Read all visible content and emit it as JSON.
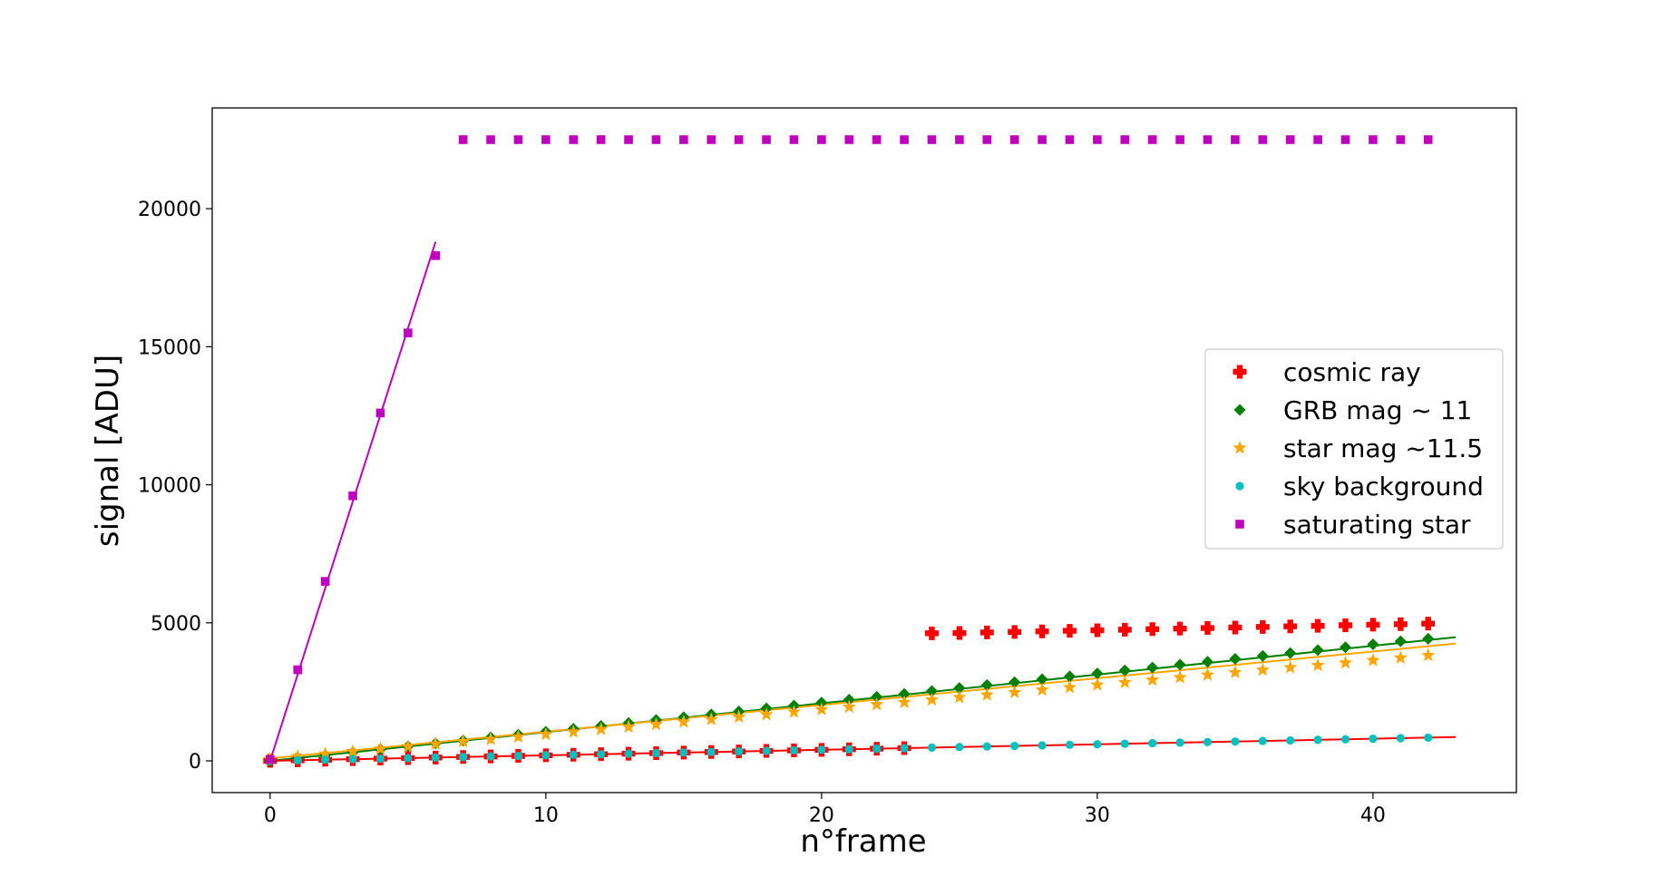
{
  "chart_data": {
    "type": "scatter",
    "xlabel": "n°frame",
    "ylabel": "signal [ADU]",
    "xlim": [
      -2.1,
      45.2
    ],
    "ylim": [
      -1150,
      23650
    ],
    "xticks": [
      0,
      10,
      20,
      30,
      40
    ],
    "yticks": [
      0,
      5000,
      10000,
      15000,
      20000
    ],
    "grid": false,
    "legend_position": "center-right",
    "series": [
      {
        "name": "cosmic ray",
        "marker": "plus",
        "color": "#ff0000",
        "x": [
          0,
          1,
          2,
          3,
          4,
          5,
          6,
          7,
          8,
          9,
          10,
          11,
          12,
          13,
          14,
          15,
          16,
          17,
          18,
          19,
          20,
          21,
          22,
          23,
          24,
          25,
          26,
          27,
          28,
          29,
          30,
          31,
          32,
          33,
          34,
          35,
          36,
          37,
          38,
          39,
          40,
          41,
          42
        ],
        "y": [
          0,
          20,
          40,
          60,
          80,
          100,
          120,
          140,
          160,
          180,
          200,
          220,
          240,
          260,
          280,
          300,
          320,
          340,
          360,
          380,
          400,
          420,
          440,
          460,
          4620,
          4630,
          4650,
          4670,
          4690,
          4710,
          4730,
          4750,
          4770,
          4790,
          4810,
          4830,
          4850,
          4870,
          4890,
          4910,
          4930,
          4950,
          4970
        ]
      },
      {
        "name": "GRB mag ~ 11",
        "marker": "diamond",
        "color": "#008000",
        "x": [
          0,
          1,
          2,
          3,
          4,
          5,
          6,
          7,
          8,
          9,
          10,
          11,
          12,
          13,
          14,
          15,
          16,
          17,
          18,
          19,
          20,
          21,
          22,
          23,
          24,
          25,
          26,
          27,
          28,
          29,
          30,
          31,
          32,
          33,
          34,
          35,
          36,
          37,
          38,
          39,
          40,
          41,
          42
        ],
        "y": [
          0,
          100,
          205,
          310,
          420,
          525,
          630,
          735,
          845,
          950,
          1055,
          1160,
          1265,
          1370,
          1480,
          1580,
          1685,
          1790,
          1900,
          2005,
          2110,
          2215,
          2320,
          2425,
          2530,
          2640,
          2745,
          2850,
          2955,
          3060,
          3165,
          3275,
          3380,
          3485,
          3590,
          3695,
          3800,
          3905,
          4010,
          4115,
          4220,
          4330,
          4420
        ]
      },
      {
        "name": "star mag ~11.5",
        "marker": "star",
        "color": "#ffa500",
        "x": [
          0,
          1,
          2,
          3,
          4,
          5,
          6,
          7,
          8,
          9,
          10,
          11,
          12,
          13,
          14,
          15,
          16,
          17,
          18,
          19,
          20,
          21,
          22,
          23,
          24,
          25,
          26,
          27,
          28,
          29,
          30,
          31,
          32,
          33,
          34,
          35,
          36,
          37,
          38,
          39,
          40,
          41,
          42
        ],
        "y": [
          60,
          160,
          250,
          340,
          430,
          520,
          610,
          700,
          780,
          870,
          960,
          1050,
          1140,
          1230,
          1320,
          1410,
          1500,
          1590,
          1680,
          1770,
          1860,
          1950,
          2040,
          2120,
          2210,
          2300,
          2390,
          2480,
          2570,
          2660,
          2750,
          2840,
          2930,
          3020,
          3110,
          3200,
          3290,
          3380,
          3460,
          3550,
          3640,
          3730,
          3820
        ]
      },
      {
        "name": "sky background",
        "marker": "circle",
        "color": "#00bfbf",
        "x": [
          0,
          1,
          2,
          3,
          4,
          5,
          6,
          7,
          8,
          9,
          10,
          11,
          12,
          13,
          14,
          15,
          16,
          17,
          18,
          19,
          20,
          21,
          22,
          23,
          24,
          25,
          26,
          27,
          28,
          29,
          30,
          31,
          32,
          33,
          34,
          35,
          36,
          37,
          38,
          39,
          40,
          41,
          42
        ],
        "y": [
          0,
          20,
          40,
          60,
          80,
          100,
          120,
          140,
          160,
          180,
          200,
          220,
          240,
          260,
          280,
          300,
          320,
          340,
          360,
          380,
          400,
          420,
          440,
          460,
          480,
          500,
          520,
          540,
          560,
          580,
          600,
          620,
          640,
          660,
          680,
          700,
          720,
          740,
          760,
          780,
          800,
          820,
          840
        ]
      },
      {
        "name": "saturating star",
        "marker": "square",
        "color": "#bf00bf",
        "x": [
          0,
          1,
          2,
          3,
          4,
          5,
          6,
          7,
          8,
          9,
          10,
          11,
          12,
          13,
          14,
          15,
          16,
          17,
          18,
          19,
          20,
          21,
          22,
          23,
          24,
          25,
          26,
          27,
          28,
          29,
          30,
          31,
          32,
          33,
          34,
          35,
          36,
          37,
          38,
          39,
          40,
          41,
          42
        ],
        "y": [
          50,
          3300,
          6500,
          9600,
          12600,
          15500,
          18300,
          22500,
          22500,
          22500,
          22500,
          22500,
          22500,
          22500,
          22500,
          22500,
          22500,
          22500,
          22500,
          22500,
          22500,
          22500,
          22500,
          22500,
          22500,
          22500,
          22500,
          22500,
          22500,
          22500,
          22500,
          22500,
          22500,
          22500,
          22500,
          22500,
          22500,
          22500,
          22500,
          22500,
          22500,
          22500,
          22500
        ]
      }
    ],
    "fit_lines": [
      {
        "color": "#bf00bf",
        "x": [
          0,
          6
        ],
        "y": [
          0,
          18800
        ]
      },
      {
        "color": "#008000",
        "x": [
          0,
          43
        ],
        "y": [
          0,
          4480
        ]
      },
      {
        "color": "#ffa500",
        "x": [
          0,
          43
        ],
        "y": [
          90,
          4250
        ]
      },
      {
        "color": "#ff0000",
        "x": [
          0,
          43
        ],
        "y": [
          0,
          860
        ]
      }
    ]
  }
}
